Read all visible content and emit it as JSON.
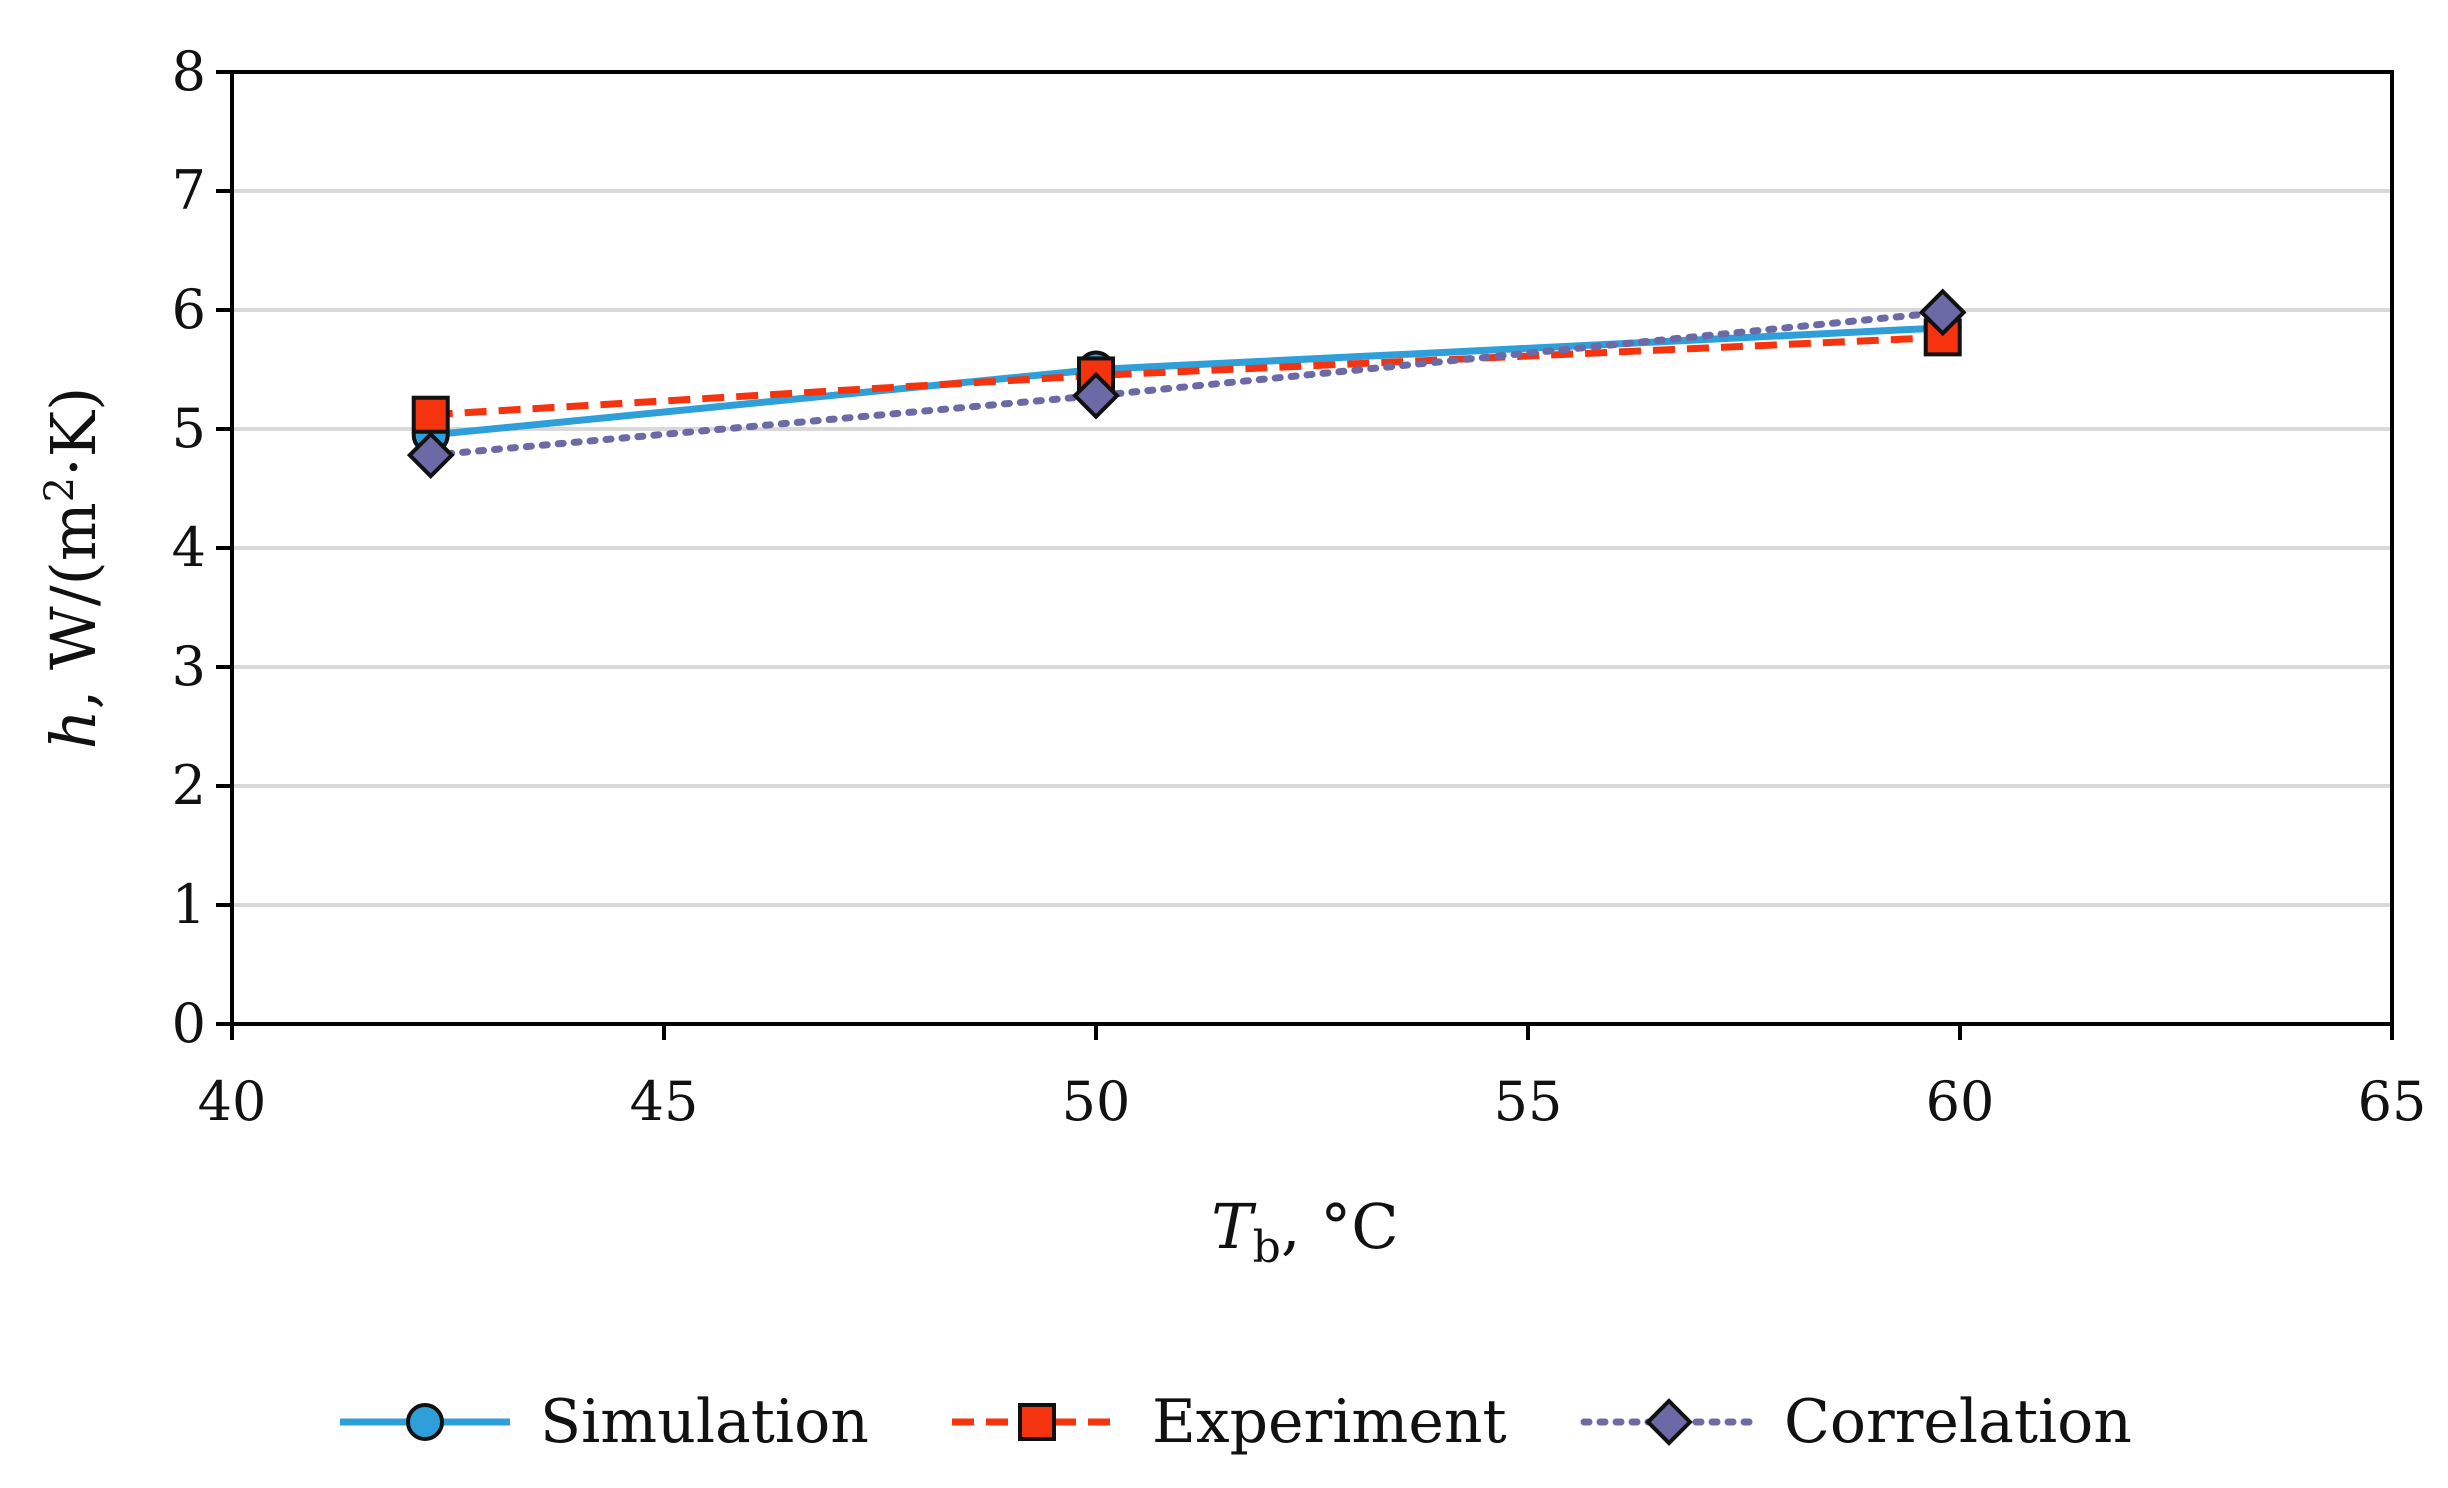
{
  "chart_data": {
    "type": "line",
    "title": "",
    "xlabel": {
      "var": "T",
      "sub": "b",
      "unit": ", °C"
    },
    "ylabel": {
      "var": "h",
      "unit_pre": ", W/(m",
      "sup": "2",
      "unit_post": "·K)"
    },
    "xlim": [
      40,
      65
    ],
    "ylim": [
      0,
      8
    ],
    "xticks": [
      40,
      45,
      50,
      55,
      60,
      65
    ],
    "yticks": [
      0,
      1,
      2,
      3,
      4,
      5,
      6,
      7,
      8
    ],
    "grid": "horizontal",
    "legend_position": "bottom",
    "series": [
      {
        "name": "Simulation",
        "x": [
          42.3,
          50,
          59.8
        ],
        "y": [
          4.95,
          5.5,
          5.85
        ],
        "color": "#2e9fd8",
        "marker": "circle",
        "line": "solid"
      },
      {
        "name": "Experiment",
        "x": [
          42.3,
          50,
          59.8
        ],
        "y": [
          5.12,
          5.45,
          5.77
        ],
        "color": "#f5330f",
        "marker": "square",
        "line": "dashed"
      },
      {
        "name": "Correlation",
        "x": [
          42.3,
          50,
          59.8
        ],
        "y": [
          4.78,
          5.28,
          5.98
        ],
        "color": "#6b6aa6",
        "marker": "diamond",
        "line": "dotted"
      }
    ]
  }
}
